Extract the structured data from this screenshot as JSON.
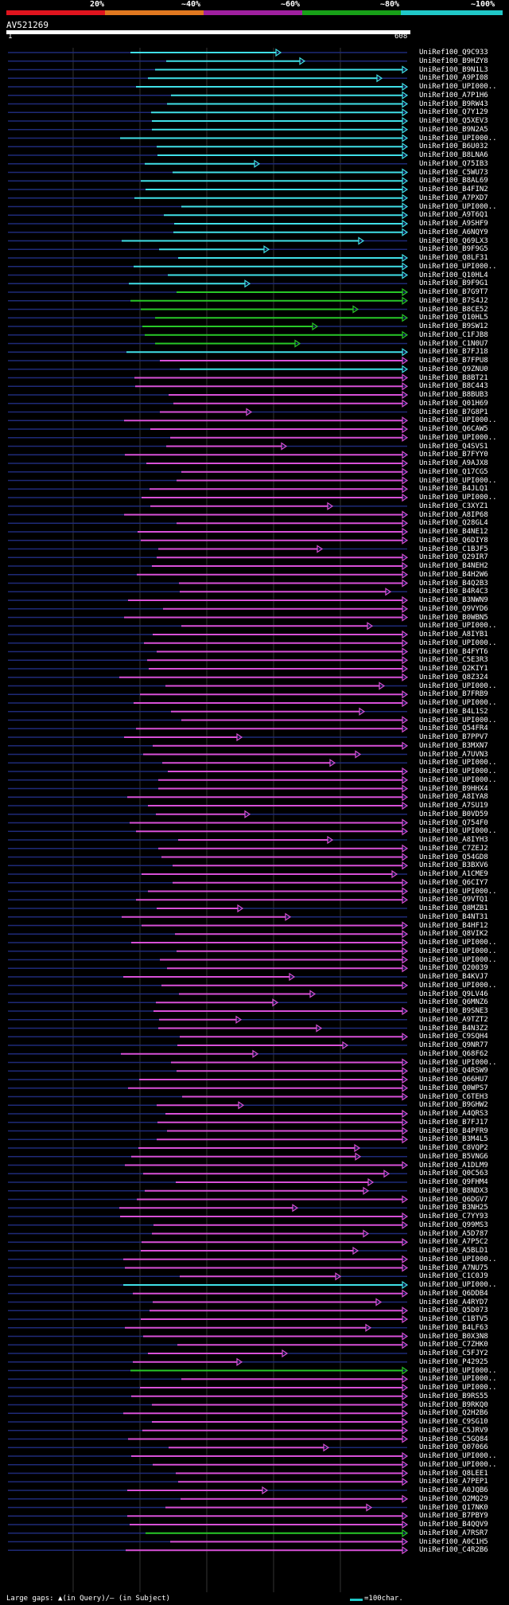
{
  "header": {
    "percent_labels": [
      "20%",
      "~40%",
      "~60%",
      "~80%",
      "~100%"
    ],
    "query_id": "AV521269",
    "query_start": "1",
    "query_end": "608"
  },
  "colors": {
    "bar1": "#e0141e",
    "bar2": "#e07820",
    "bar3": "#a020a0",
    "bar4": "#18a018",
    "bar5": "#20c8c8",
    "cyan": "#40e0e8",
    "green": "#28c828",
    "magenta": "#d850d8",
    "thin": "#1e2a78",
    "grid": "#555555"
  },
  "hits": [
    "UniRef100_Q9C933",
    "UniRef100_B9HZY8",
    "UniRef100_B9N1L3",
    "UniRef100_A9PI08",
    "UniRef100_UPI000..",
    "UniRef100_A7P1H6",
    "UniRef100_B9RW43",
    "UniRef100_Q7Y129",
    "UniRef100_Q5XEV3",
    "UniRef100_B9N2A5",
    "UniRef100_UPI000..",
    "UniRef100_B6U032",
    "UniRef100_B8LNA6",
    "UniRef100_Q75IB3",
    "UniRef100_C5WU73",
    "UniRef100_B8AL69",
    "UniRef100_B4FIN2",
    "UniRef100_A7PXD7",
    "UniRef100_UPI000..",
    "UniRef100_A9T6Q1",
    "UniRef100_A9SHF9",
    "UniRef100_A6NQY9",
    "UniRef100_Q69LX3",
    "UniRef100_B9F9G5",
    "UniRef100_Q8LF31",
    "UniRef100_UPI000..",
    "UniRef100_Q10HL4",
    "UniRef100_B9F9G1",
    "UniRef100_B7G9T7",
    "UniRef100_B7S4J2",
    "UniRef100_B8CE52",
    "UniRef100_Q10HL5",
    "UniRef100_B9SW12",
    "UniRef100_C1FJB8",
    "UniRef100_C1N0U7",
    "UniRef100_B7FJ18",
    "UniRef100_B7FPU8",
    "UniRef100_Q9ZNU0",
    "UniRef100_B8BT21",
    "UniRef100_B8C443",
    "UniRef100_B8BUB3",
    "UniRef100_Q01H69",
    "UniRef100_B7G8P1",
    "UniRef100_UPI000..",
    "UniRef100_Q6CAW5",
    "UniRef100_UPI000..",
    "UniRef100_Q4SVS1",
    "UniRef100_B7FYY0",
    "UniRef100_A9AJX8",
    "UniRef100_Q17CG5",
    "UniRef100_UPI000..",
    "UniRef100_B4JLQ1",
    "UniRef100_UPI000..",
    "UniRef100_C3XYZ1",
    "UniRef100_A8IP68",
    "UniRef100_Q28GL4",
    "UniRef100_B4NE12",
    "UniRef100_Q6DIY8",
    "UniRef100_C1BJF5",
    "UniRef100_Q29IR7",
    "UniRef100_B4NEH2",
    "UniRef100_B4H2W6",
    "UniRef100_B4Q2B3",
    "UniRef100_B4R4C3",
    "UniRef100_B3NWN9",
    "UniRef100_Q9VYD6",
    "UniRef100_B0WBN5",
    "UniRef100_UPI000..",
    "UniRef100_A8IYB1",
    "UniRef100_UPI000..",
    "UniRef100_B4FYT6",
    "UniRef100_C5E3R3",
    "UniRef100_Q2KIY1",
    "UniRef100_Q8Z324",
    "UniRef100_UPI000..",
    "UniRef100_B7FRB9",
    "UniRef100_UPI000..",
    "UniRef100_B4L1S2",
    "UniRef100_UPI000..",
    "UniRef100_Q54FR4",
    "UniRef100_B7PPV7",
    "UniRef100_B3MXN7",
    "UniRef100_A7UVN3",
    "UniRef100_UPI000..",
    "UniRef100_UPI000..",
    "UniRef100_UPI000..",
    "UniRef100_B9HHX4",
    "UniRef100_A8IYA8",
    "UniRef100_A7SU19",
    "UniRef100_B0VD59",
    "UniRef100_Q754F0",
    "UniRef100_UPI000..",
    "UniRef100_A8IYH3",
    "UniRef100_C7ZEJ2",
    "UniRef100_Q54GD8",
    "UniRef100_B3BXV6",
    "UniRef100_A1CME9",
    "UniRef100_Q6CIY7",
    "UniRef100_UPI000..",
    "UniRef100_Q9VTQ1",
    "UniRef100_Q8MZB1",
    "UniRef100_B4NT31",
    "UniRef100_B4HF12",
    "UniRef100_Q8VIK2",
    "UniRef100_UPI000..",
    "UniRef100_UPI000..",
    "UniRef100_UPI000..",
    "UniRef100_Q20039",
    "UniRef100_B4KVJ7",
    "UniRef100_UPI000..",
    "UniRef100_Q9LV46",
    "UniRef100_Q6MNZ6",
    "UniRef100_B9SNE3",
    "UniRef100_A9TZT2",
    "UniRef100_B4N3Z2",
    "UniRef100_C9SQH4",
    "UniRef100_Q9NR77",
    "UniRef100_Q68F62",
    "UniRef100_UPI000..",
    "UniRef100_Q4RSW9",
    "UniRef100_Q66HU7",
    "UniRef100_Q0WPS7",
    "UniRef100_C6TEH3",
    "UniRef100_B9GHW2",
    "UniRef100_A4QRS3",
    "UniRef100_B7FJ17",
    "UniRef100_B4PFR9",
    "UniRef100_B3M4L5",
    "UniRef100_C8VQP2",
    "UniRef100_B5VNG6",
    "UniRef100_A1DLM9",
    "UniRef100_Q0C563",
    "UniRef100_Q9FHM4",
    "UniRef100_B8NDX3",
    "UniRef100_Q6DGV7",
    "UniRef100_B3NH25",
    "UniRef100_C7YY93",
    "UniRef100_Q99MS3",
    "UniRef100_A5D787",
    "UniRef100_A7P5C2",
    "UniRef100_A5BLD1",
    "UniRef100_UPI000..",
    "UniRef100_A7NU75",
    "UniRef100_C1C0J9",
    "UniRef100_UPI000..",
    "UniRef100_Q6DDB4",
    "UniRef100_A4RYD7",
    "UniRef100_Q5D073",
    "UniRef100_C1BTV5",
    "UniRef100_B4LF63",
    "UniRef100_B0X3N8",
    "UniRef100_C7ZHK0",
    "UniRef100_C5FJY2",
    "UniRef100_P42925",
    "UniRef100_UPI000..",
    "UniRef100_UPI000..",
    "UniRef100_UPI000..",
    "UniRef100_B9RS55",
    "UniRef100_B9RKQ0",
    "UniRef100_Q2H2B6",
    "UniRef100_C9SG10",
    "UniRef100_C5JRV9",
    "UniRef100_C5GQ84",
    "UniRef100_Q07066",
    "UniRef100_UPI000..",
    "UniRef100_UPI000..",
    "UniRef100_Q8LEE1",
    "UniRef100_A7PEP1",
    "UniRef100_A0JQB6",
    "UniRef100_Q2MQ29",
    "UniRef100_Q17NK0",
    "UniRef100_B7PBY9",
    "UniRef100_B4QQV9",
    "UniRef100_A7RSR7",
    "UniRef100_A0C1H5",
    "UniRef100_C4R2B6"
  ],
  "footer": {
    "legend": "Large gaps: ▲(in Query)/– (in Subject)",
    "scale": "=100char."
  }
}
